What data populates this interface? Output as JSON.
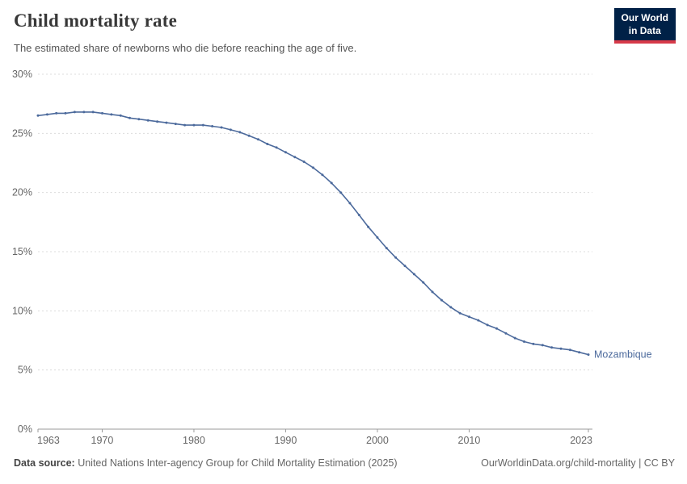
{
  "header": {
    "title": "Child mortality rate",
    "subtitle": "The estimated share of newborns who die before reaching the age of five.",
    "logo": {
      "line1": "Our World",
      "line2": "in Data"
    }
  },
  "colors": {
    "series_line": "#4c6a9c",
    "logo_bg": "#002147",
    "logo_accent": "#d73a49",
    "gridline": "#dcdcdc",
    "axis_line": "#9a9a9a",
    "tick_text": "#666666"
  },
  "chart_data": {
    "type": "line",
    "title": "Child mortality rate",
    "subtitle": "The estimated share of newborns who die before reaching the age of five.",
    "xlabel": "",
    "ylabel": "",
    "ylim": [
      0,
      30
    ],
    "y_ticks": [
      0,
      5,
      10,
      15,
      20,
      25,
      30
    ],
    "y_tick_suffix": "%",
    "x_ticks": [
      1963,
      1970,
      1980,
      1990,
      2000,
      2010,
      2023
    ],
    "grid": "horizontal dashed",
    "legend": "label at end of line",
    "x": [
      1963,
      1964,
      1965,
      1966,
      1967,
      1968,
      1969,
      1970,
      1971,
      1972,
      1973,
      1974,
      1975,
      1976,
      1977,
      1978,
      1979,
      1980,
      1981,
      1982,
      1983,
      1984,
      1985,
      1986,
      1987,
      1988,
      1989,
      1990,
      1991,
      1992,
      1993,
      1994,
      1995,
      1996,
      1997,
      1998,
      1999,
      2000,
      2001,
      2002,
      2003,
      2004,
      2005,
      2006,
      2007,
      2008,
      2009,
      2010,
      2011,
      2012,
      2013,
      2014,
      2015,
      2016,
      2017,
      2018,
      2019,
      2020,
      2021,
      2022,
      2023
    ],
    "series": [
      {
        "name": "Mozambique",
        "color": "#4c6a9c",
        "values": [
          26.5,
          26.6,
          26.7,
          26.7,
          26.8,
          26.8,
          26.8,
          26.7,
          26.6,
          26.5,
          26.3,
          26.2,
          26.1,
          26.0,
          25.9,
          25.8,
          25.7,
          25.7,
          25.7,
          25.6,
          25.5,
          25.3,
          25.1,
          24.8,
          24.5,
          24.1,
          23.8,
          23.4,
          23.0,
          22.6,
          22.1,
          21.5,
          20.8,
          20.0,
          19.1,
          18.1,
          17.1,
          16.2,
          15.3,
          14.5,
          13.8,
          13.1,
          12.4,
          11.6,
          10.9,
          10.3,
          9.8,
          9.5,
          9.2,
          8.8,
          8.5,
          8.1,
          7.7,
          7.4,
          7.2,
          7.1,
          6.9,
          6.8,
          6.7,
          6.5,
          6.3
        ]
      }
    ]
  },
  "footer": {
    "source_label": "Data source:",
    "source_text": " United Nations Inter-agency Group for Child Mortality Estimation (2025)",
    "right_text": "OurWorldinData.org/child-mortality | CC BY"
  }
}
